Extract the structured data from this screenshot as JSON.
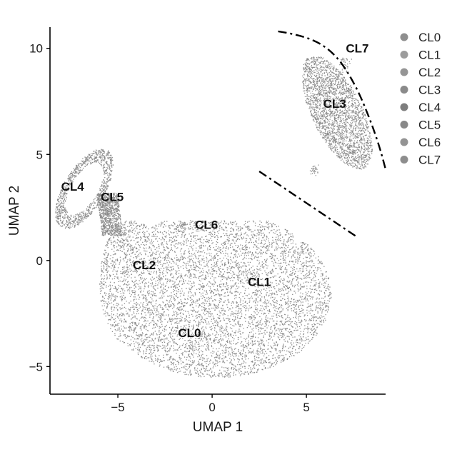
{
  "chart_data": {
    "type": "scatter",
    "title": "",
    "xlabel": "UMAP 1",
    "ylabel": "UMAP 2",
    "xlim": [
      -8.6,
      9.2
    ],
    "ylim": [
      -6.3,
      11.0
    ],
    "x_ticks": [
      -5,
      0,
      5
    ],
    "y_ticks": [
      -5,
      0,
      5,
      10
    ],
    "x_tick_labels": [
      "−5",
      "0",
      "5"
    ],
    "y_tick_labels": [
      "−5",
      "0",
      "5",
      "10"
    ],
    "grid": false,
    "legend_position": "top-right",
    "point_color": "#8c8c8c",
    "series": [
      {
        "name": "CL0",
        "color": "#8e8e8e",
        "label_pos": [
          -1.2,
          -3.4
        ]
      },
      {
        "name": "CL1",
        "color": "#9c9c9c",
        "label_pos": [
          2.5,
          -1.0
        ]
      },
      {
        "name": "CL2",
        "color": "#959595",
        "label_pos": [
          -3.6,
          -0.2
        ]
      },
      {
        "name": "CL3",
        "color": "#8a8a8a",
        "label_pos": [
          6.5,
          7.4
        ]
      },
      {
        "name": "CL4",
        "color": "#7d7d7d",
        "label_pos": [
          -7.4,
          3.5
        ]
      },
      {
        "name": "CL5",
        "color": "#888888",
        "label_pos": [
          -5.3,
          3.0
        ]
      },
      {
        "name": "CL6",
        "color": "#939393",
        "label_pos": [
          -0.3,
          1.7
        ]
      },
      {
        "name": "CL7",
        "color": "#8d8d8d",
        "label_pos": [
          7.7,
          10.0
        ]
      }
    ],
    "annotations": [
      {
        "type": "dash-dot-arc",
        "points": [
          [
            3.5,
            10.8
          ],
          [
            5.0,
            10.6
          ],
          [
            6.5,
            9.8
          ],
          [
            7.6,
            8.3
          ],
          [
            8.4,
            6.6
          ],
          [
            8.9,
            5.3
          ],
          [
            9.2,
            4.3
          ]
        ]
      },
      {
        "type": "dash-dot-line",
        "points": [
          [
            2.5,
            4.2
          ],
          [
            7.7,
            1.1
          ]
        ]
      }
    ]
  }
}
